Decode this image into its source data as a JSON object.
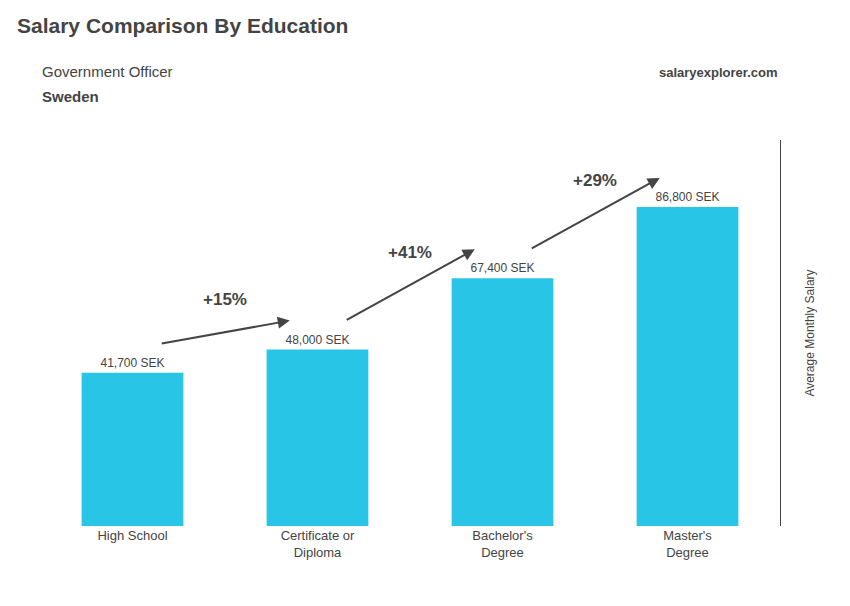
{
  "chart_data": {
    "type": "bar",
    "title": "Salary Comparison By Education",
    "subtitle": [
      "Government Officer",
      "Sweden"
    ],
    "source": "salaryexplorer.com",
    "ylabel": "Average Monthly Salary",
    "categories": [
      "High School",
      "Certificate or\nDiploma",
      "Bachelor's\nDegree",
      "Master's\nDegree"
    ],
    "values": [
      41700,
      48000,
      67400,
      86800
    ],
    "value_labels": [
      "41,700 SEK",
      "48,000 SEK",
      "67,400 SEK",
      "86,800 SEK"
    ],
    "data_labels": true,
    "annotations": [
      "+15%",
      "+41%",
      "+29%"
    ],
    "color": "#29c5e6",
    "ylim": [
      0,
      105000
    ],
    "yticks": [],
    "grid": false,
    "tick_labels": "x"
  }
}
